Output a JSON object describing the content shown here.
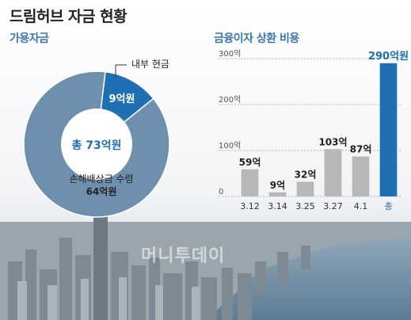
{
  "page": {
    "title": "드림허브 자금 현황",
    "watermark": "머니투데이"
  },
  "left_panel": {
    "title": "가용자금"
  },
  "right_panel": {
    "title": "금융이자 상환 비용"
  },
  "colors": {
    "accent_blue": "#1f6fb5",
    "donut_outer": "#6f8fae",
    "donut_hole": "#ffffff",
    "bar_gray": "#b8b8b8",
    "total_bar": "#1f6fb5",
    "title_blue": "#3a78b0"
  },
  "chart_data": [
    {
      "type": "pie",
      "variant": "donut",
      "slices": [
        {
          "label": "내부 현금",
          "value": 9,
          "value_label": "9억원"
        },
        {
          "label": "손해배상금 수령",
          "value": 64,
          "value_label": "64억원"
        }
      ],
      "center_label": "총 73억원"
    },
    {
      "type": "bar",
      "categories": [
        "3.12",
        "3.14",
        "3.25",
        "3.27",
        "4.1",
        "총"
      ],
      "values": [
        59,
        9,
        32,
        103,
        87,
        290
      ],
      "value_labels": [
        "59억",
        "9억",
        "32억",
        "103억",
        "87억",
        "290억원"
      ],
      "yticks": [
        0,
        100,
        200,
        300
      ],
      "ytick_labels": [
        "0",
        "100억",
        "200억",
        "300억"
      ],
      "ylim": [
        0,
        300
      ],
      "grid": true,
      "highlight_category": "총"
    }
  ]
}
